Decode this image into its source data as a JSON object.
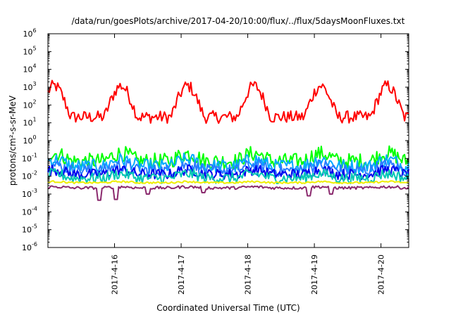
{
  "chart_data": {
    "type": "line",
    "title": "/data/run/goesPlots/archive/2017-04-20/10:00/flux/../flux/5daysMoonFluxes.txt",
    "xlabel": "Coordinated Universal Time (UTC)",
    "ylabel": "protons/cm²-s-sr-MeV",
    "yscale": "log",
    "ylim": [
      1e-06,
      1000000.0
    ],
    "ytick_exponents": [
      -6,
      -5,
      -4,
      -3,
      -2,
      -1,
      0,
      1,
      2,
      3,
      4,
      5,
      6
    ],
    "xlim": [
      "2017-04-15 00:00",
      "2017-04-20 10:00"
    ],
    "xticks": [
      "2017-4-16",
      "2017-4-17",
      "2017-4-18",
      "2017-4-19",
      "2017-4-20"
    ],
    "grid": false,
    "legend": false,
    "series": [
      {
        "color": "#ff0000",
        "base": 50,
        "amp": 1.25,
        "noise": 0.35,
        "dips": []
      },
      {
        "color": "#00ff00",
        "base": 0.09,
        "amp": 0.35,
        "noise": 0.45,
        "dips": []
      },
      {
        "color": "#00aaff",
        "base": 0.045,
        "amp": 0.3,
        "noise": 0.4,
        "dips": []
      },
      {
        "color": "#2a7bff",
        "base": 0.025,
        "amp": 0.25,
        "noise": 0.35,
        "dips": []
      },
      {
        "color": "#0000ee",
        "base": 0.015,
        "amp": 0.2,
        "noise": 0.3,
        "dips": []
      },
      {
        "color": "#00c8b4",
        "base": 0.009,
        "amp": 0.2,
        "noise": 0.3,
        "dips": []
      },
      {
        "color": "#eeee00",
        "base": 0.0045,
        "amp": 0.05,
        "noise": 0.05,
        "dips": []
      },
      {
        "color": "#8b2a6e",
        "base": 0.0023,
        "amp": 0.05,
        "noise": 0.08,
        "dips": [
          {
            "x": "2017-04-15 18:30",
            "value": 0.00045
          },
          {
            "x": "2017-04-16 00:30",
            "value": 0.0005
          },
          {
            "x": "2017-04-16 12:00",
            "value": 0.001
          },
          {
            "x": "2017-04-17 08:00",
            "value": 0.0012
          },
          {
            "x": "2017-04-18 22:00",
            "value": 0.0008
          },
          {
            "x": "2017-04-19 06:00",
            "value": 0.001
          }
        ]
      }
    ]
  }
}
